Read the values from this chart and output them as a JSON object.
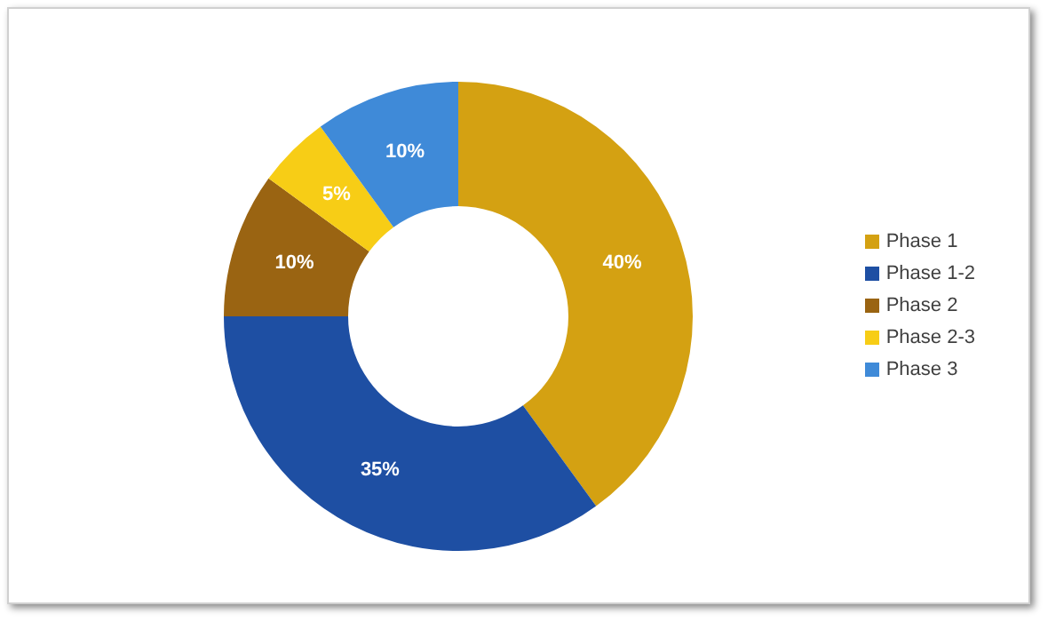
{
  "chart_data": {
    "type": "donut",
    "categories": [
      "Phase 1",
      "Phase 1-2",
      "Phase 2",
      "Phase 2-3",
      "Phase 3"
    ],
    "values": [
      40,
      35,
      10,
      5,
      10
    ],
    "colors": [
      "#d4a112",
      "#1e4fa3",
      "#9a6412",
      "#f7cd16",
      "#3f8ad8"
    ],
    "value_labels": [
      "40%",
      "35%",
      "10%",
      "5%",
      "10%"
    ],
    "legend": "right"
  }
}
